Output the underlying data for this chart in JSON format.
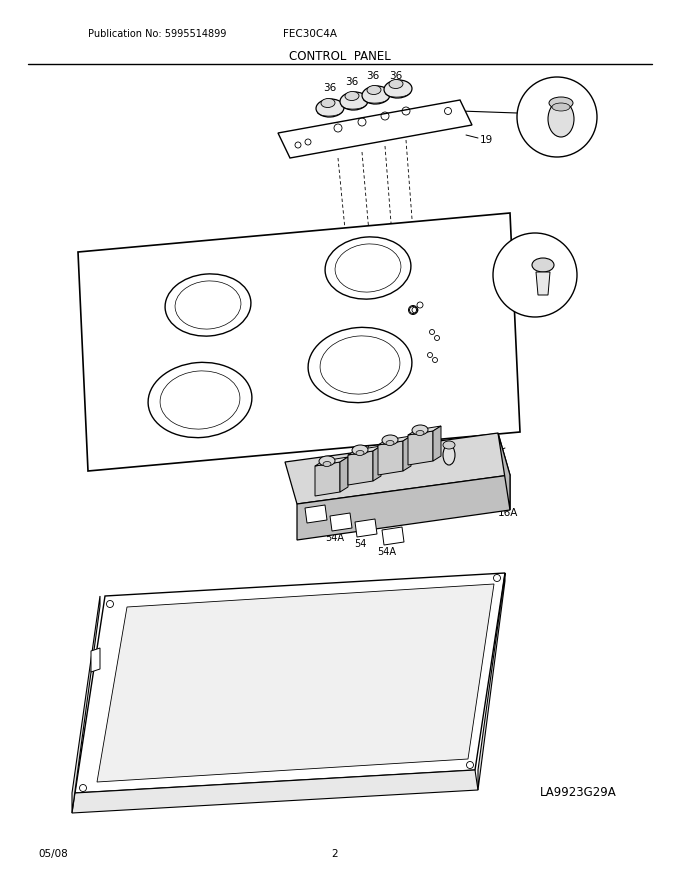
{
  "publication": "Publication No: 5995514899",
  "model": "FEC30C4A",
  "title": "CONTROL  PANEL",
  "diagram_id": "LA9923G29A",
  "date": "05/08",
  "page": "2",
  "bg_color": "#ffffff",
  "fig_width": 6.8,
  "fig_height": 8.8,
  "dpi": 100
}
